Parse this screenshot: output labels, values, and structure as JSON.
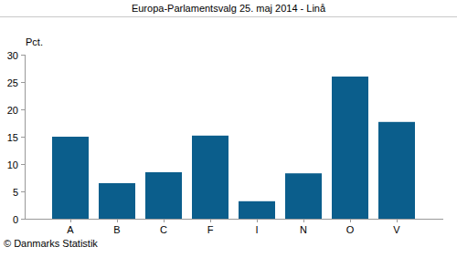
{
  "chart_data": {
    "type": "bar",
    "title": "Europa-Parlamentsvalg 25. maj 2014 - Linå",
    "y_label": "Pct.",
    "source": "© Danmarks Statistik",
    "categories": [
      "A",
      "B",
      "C",
      "F",
      "I",
      "N",
      "O",
      "V"
    ],
    "values": [
      15.0,
      6.5,
      8.5,
      15.2,
      3.2,
      8.3,
      26.0,
      17.7
    ],
    "color": "#0b5e8c",
    "ylim": [
      0,
      30
    ],
    "yticks": [
      0,
      5,
      10,
      15,
      20,
      25,
      30
    ],
    "grid": false
  }
}
